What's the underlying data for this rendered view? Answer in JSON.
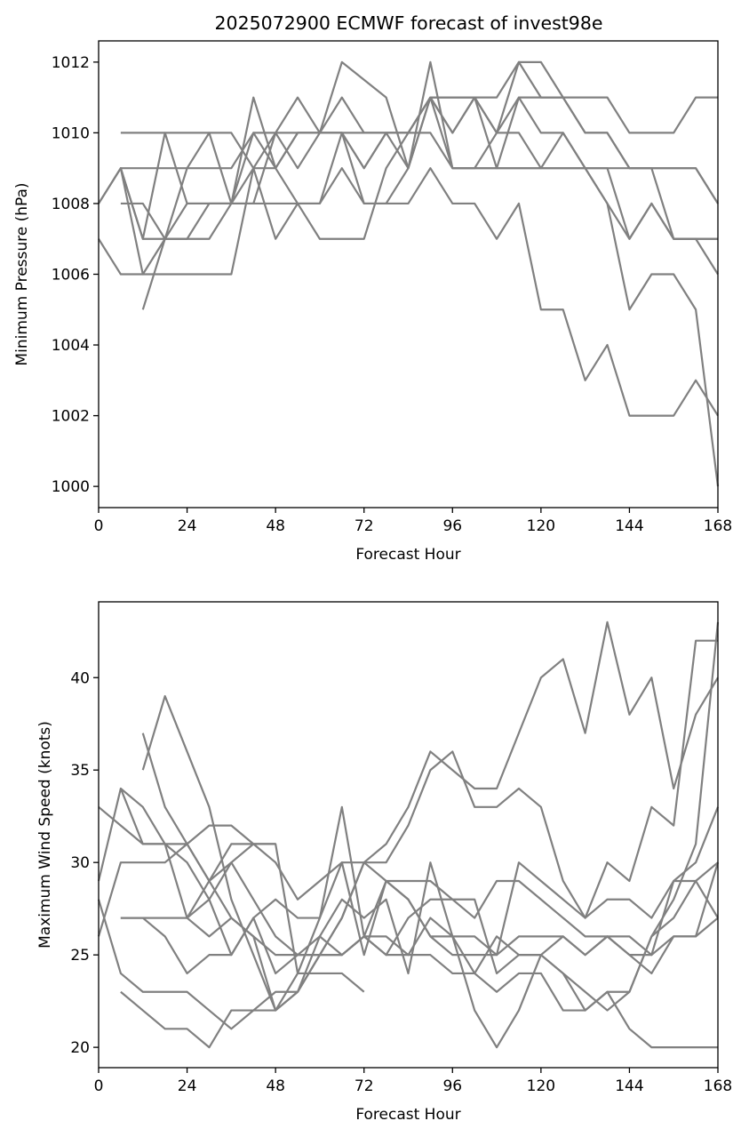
{
  "chart_data": [
    {
      "type": "line",
      "title": "2025072900 ECMWF forecast of invest98e",
      "xlabel": "Forecast Hour",
      "ylabel": "Minimum Pressure (hPa)",
      "xlim": [
        0,
        168
      ],
      "ylim": [
        999.4,
        1012.6
      ],
      "xticks": [
        0,
        24,
        48,
        72,
        96,
        120,
        144,
        168
      ],
      "yticks": [
        1000,
        1002,
        1004,
        1006,
        1008,
        1010,
        1012
      ],
      "grid": false,
      "line_color": "#808080",
      "series": [
        {
          "x": [
            6,
            12,
            18,
            24,
            30,
            36,
            42,
            48,
            54,
            60,
            66,
            72,
            78,
            84,
            90,
            96,
            102,
            108,
            114,
            120,
            126,
            132,
            138,
            144,
            150,
            156,
            162,
            168
          ],
          "values": [
            1010,
            1010,
            1010,
            1010,
            1010,
            1010,
            1009,
            1009,
            1010,
            1010,
            1010,
            1010,
            1010,
            1010,
            1010,
            1009,
            1009,
            1009,
            1009,
            1009,
            1009,
            1009,
            1009,
            1009,
            1009,
            1009,
            1009,
            1008
          ]
        },
        {
          "x": [
            0,
            6,
            12,
            18,
            24,
            30,
            36,
            42,
            48,
            54,
            60,
            66,
            72,
            78,
            84,
            90,
            96,
            102,
            108,
            114,
            120,
            126,
            132,
            138,
            144,
            150,
            156,
            162,
            168
          ],
          "values": [
            1007,
            1006,
            1006,
            1006,
            1006,
            1006,
            1006,
            1009,
            1010,
            1011,
            1010,
            1012,
            1011.5,
            1011,
            1009,
            1011,
            1011,
            1011,
            1011,
            1012,
            1012,
            1011,
            1010,
            1010,
            1009,
            1009,
            1009,
            1009,
            1008
          ]
        },
        {
          "x": [
            0,
            6,
            12,
            18,
            24,
            30,
            36,
            42,
            48,
            54,
            60,
            66,
            72,
            78,
            84,
            90,
            96,
            102,
            108,
            114,
            120,
            126,
            132,
            138,
            144,
            150,
            156,
            162,
            168
          ],
          "values": [
            1008,
            1009,
            1007,
            1007,
            1007,
            1008,
            1008,
            1008,
            1008,
            1008,
            1008,
            1009,
            1008,
            1008,
            1008,
            1009,
            1008,
            1008,
            1007,
            1008,
            1005,
            1005,
            1003,
            1004,
            1002,
            1002,
            1002,
            1003,
            1002
          ]
        },
        {
          "x": [
            6,
            12,
            18,
            24,
            30,
            36,
            42,
            48,
            54,
            60,
            66,
            72,
            78,
            84,
            90,
            96,
            102,
            108,
            114,
            120,
            126,
            132,
            138,
            144,
            150,
            156,
            162,
            168
          ],
          "values": [
            1009,
            1007,
            1010,
            1008,
            1008,
            1008,
            1011,
            1009,
            1008,
            1008,
            1010,
            1008,
            1008,
            1009,
            1011,
            1009,
            1009,
            1009,
            1009,
            1009,
            1009,
            1009,
            1008,
            1005,
            1006,
            1006,
            1005,
            1000
          ]
        },
        {
          "x": [
            6,
            12,
            18,
            24,
            30,
            36,
            42,
            48,
            54,
            60,
            66,
            72,
            78,
            84,
            90,
            96,
            102,
            108,
            114,
            120,
            126,
            132,
            138,
            144,
            150,
            156,
            162,
            168
          ],
          "values": [
            1008,
            1008,
            1007,
            1007,
            1007,
            1008,
            1009,
            1007,
            1008,
            1007,
            1007,
            1007,
            1009,
            1010,
            1011,
            1010,
            1011,
            1009,
            1011,
            1010,
            1010,
            1009,
            1009,
            1007,
            1008,
            1007,
            1007,
            1007
          ]
        },
        {
          "x": [
            12,
            18,
            24,
            30,
            36,
            42,
            48,
            54,
            60,
            66,
            72,
            78,
            84,
            90,
            96,
            102,
            108,
            114,
            120,
            126,
            132,
            138,
            144,
            150,
            156,
            162,
            168
          ],
          "values": [
            1005,
            1007,
            1008,
            1008,
            1008,
            1008,
            1010,
            1010,
            1010,
            1010,
            1009,
            1010,
            1009,
            1012,
            1009,
            1009,
            1010,
            1012,
            1011,
            1011,
            1010,
            1010,
            1009,
            1009,
            1007,
            1007,
            1007
          ]
        },
        {
          "x": [
            6,
            12,
            18,
            24,
            30,
            36,
            42,
            48,
            54,
            60,
            66,
            72,
            78,
            84,
            90,
            96,
            102,
            108,
            114,
            120,
            126,
            132,
            138,
            144,
            150,
            156,
            162,
            168
          ],
          "values": [
            1009,
            1009,
            1009,
            1009,
            1009,
            1009,
            1010,
            1010,
            1009,
            1010,
            1011,
            1010,
            1010,
            1010,
            1011,
            1011,
            1011,
            1010,
            1011,
            1011,
            1011,
            1011,
            1011,
            1010,
            1010,
            1010,
            1011,
            1011
          ]
        },
        {
          "x": [
            0,
            6,
            12,
            18,
            24,
            30,
            36,
            42,
            48,
            54,
            60,
            66,
            72,
            78,
            84,
            90,
            96,
            102,
            108,
            114,
            120,
            126,
            132,
            138,
            144,
            150,
            156,
            162,
            168
          ],
          "values": [
            1008,
            1009,
            1006,
            1007,
            1009,
            1010,
            1008,
            1010,
            1009,
            1010,
            1010,
            1010,
            1009,
            1010,
            1010,
            1011,
            1010,
            1011,
            1010,
            1010,
            1009,
            1010,
            1009,
            1008,
            1007,
            1008,
            1007,
            1007,
            1006
          ]
        }
      ]
    },
    {
      "type": "line",
      "title": "",
      "xlabel": "Forecast Hour",
      "ylabel": "Maximum Wind Speed (knots)",
      "xlim": [
        0,
        168
      ],
      "ylim": [
        18.9,
        44.1
      ],
      "xticks": [
        0,
        24,
        48,
        72,
        96,
        120,
        144,
        168
      ],
      "yticks": [
        20,
        25,
        30,
        35,
        40
      ],
      "grid": false,
      "line_color": "#808080",
      "series": [
        {
          "x": [
            12,
            18,
            24,
            30,
            36,
            42,
            48,
            54,
            60,
            66,
            72,
            78,
            84,
            90,
            96,
            102,
            108,
            114,
            120,
            126,
            132,
            138,
            144,
            150,
            156,
            162,
            168
          ],
          "values": [
            35,
            39,
            36,
            33,
            28,
            25,
            22,
            23,
            25,
            27,
            30,
            31,
            33,
            36,
            35,
            34,
            34,
            37,
            40,
            41,
            37,
            43,
            38,
            40,
            34,
            38,
            40
          ]
        },
        {
          "x": [
            0,
            6,
            12,
            18,
            24,
            30,
            36,
            42,
            48,
            54,
            60,
            66,
            72,
            78,
            84,
            90,
            96,
            102,
            108,
            114,
            120,
            126,
            132,
            138,
            144,
            150,
            156,
            162,
            168
          ],
          "values": [
            33,
            32,
            31,
            31,
            31,
            29,
            27,
            26,
            25,
            25,
            25,
            27,
            30,
            29,
            29,
            29,
            28,
            27,
            29,
            29,
            28,
            27,
            26,
            26,
            25,
            25,
            26,
            26,
            27
          ]
        },
        {
          "x": [
            0,
            6,
            12,
            18,
            24,
            30,
            36,
            42,
            48,
            54,
            60,
            66,
            72,
            78,
            84,
            90,
            96,
            102,
            108,
            114,
            120,
            126,
            132,
            138,
            144,
            150,
            156,
            162,
            168
          ],
          "values": [
            29,
            34,
            31,
            31,
            30,
            28,
            25,
            27,
            28,
            27,
            27,
            30,
            25,
            29,
            28,
            26,
            26,
            24,
            23,
            24,
            24,
            22,
            22,
            23,
            21,
            20,
            20,
            20,
            20
          ]
        },
        {
          "x": [
            6,
            12,
            18,
            24,
            30,
            36,
            42,
            48,
            54,
            60,
            66,
            72
          ],
          "values": [
            23,
            22,
            21,
            21,
            20,
            22,
            22,
            22,
            24,
            24,
            24,
            23
          ]
        },
        {
          "x": [
            6,
            12,
            18,
            24,
            30,
            36,
            42,
            48,
            54,
            60,
            66,
            72,
            78,
            84,
            90,
            96,
            102,
            108,
            114,
            120,
            126,
            132,
            138,
            144,
            150,
            156,
            162,
            168
          ],
          "values": [
            27,
            27,
            27,
            27,
            28,
            30,
            31,
            30,
            28,
            29,
            30,
            30,
            30,
            32,
            35,
            36,
            33,
            33,
            34,
            33,
            29,
            27,
            30,
            29,
            33,
            32,
            42,
            42
          ]
        },
        {
          "x": [
            6,
            12,
            18,
            24,
            30,
            36,
            42,
            48,
            54,
            60,
            66,
            72,
            78,
            84,
            90,
            96,
            102,
            108,
            114,
            120,
            126,
            132,
            138,
            144,
            150,
            156,
            162,
            168
          ],
          "values": [
            34,
            33,
            31,
            27,
            29,
            31,
            31,
            31,
            24,
            27,
            33,
            26,
            29,
            28,
            26,
            25,
            25,
            25,
            26,
            26,
            26,
            25,
            26,
            26,
            25,
            29,
            29,
            27
          ]
        },
        {
          "x": [
            0,
            6,
            12,
            18,
            24,
            30,
            36,
            42,
            48
          ],
          "values": [
            26,
            30,
            30,
            30,
            31,
            32,
            32,
            31,
            31
          ]
        },
        {
          "x": [
            0,
            6,
            12,
            18,
            24,
            30,
            36,
            42,
            48,
            54,
            60,
            66,
            72,
            78,
            84,
            90,
            96,
            102,
            108,
            114,
            120,
            126,
            132,
            138,
            144,
            150,
            156,
            162,
            168
          ],
          "values": [
            28,
            24,
            23,
            23,
            23,
            22,
            21,
            22,
            23,
            23,
            26,
            25,
            26,
            25,
            25,
            25,
            24,
            24,
            26,
            25,
            25,
            26,
            25,
            26,
            25,
            24,
            26,
            26,
            30
          ]
        },
        {
          "x": [
            12,
            18,
            24,
            30,
            36,
            42,
            48,
            54,
            60,
            66,
            72,
            78,
            84,
            90,
            96,
            102,
            108,
            114,
            120,
            126,
            132,
            138,
            144,
            150,
            156,
            162,
            168
          ],
          "values": [
            37,
            33,
            31,
            29,
            30,
            28,
            26,
            25,
            25,
            25,
            26,
            25,
            27,
            28,
            28,
            28,
            24,
            25,
            25,
            24,
            22,
            23,
            23,
            26,
            28,
            31,
            43
          ]
        },
        {
          "x": [
            6,
            12,
            18,
            24,
            30,
            36,
            42,
            48,
            54,
            60,
            66,
            72,
            78,
            84,
            90,
            96,
            102,
            108,
            114,
            120,
            126,
            132,
            138,
            144,
            150,
            156,
            162,
            168
          ],
          "values": [
            27,
            27,
            26,
            24,
            25,
            25,
            27,
            24,
            25,
            26,
            28,
            27,
            28,
            24,
            30,
            26,
            26,
            25,
            30,
            29,
            28,
            27,
            28,
            28,
            27,
            29,
            30,
            33
          ]
        },
        {
          "x": [
            6,
            12,
            18,
            24,
            30,
            36,
            42,
            48,
            54,
            60,
            66,
            72,
            78,
            84,
            90,
            96,
            102,
            108,
            114,
            120,
            126,
            132,
            138,
            144,
            150,
            156,
            162,
            168
          ],
          "values": [
            27,
            27,
            27,
            27,
            26,
            27,
            26,
            22,
            23,
            25,
            25,
            26,
            26,
            25,
            27,
            26,
            22,
            20,
            22,
            25,
            24,
            23,
            22,
            23,
            26,
            27,
            29,
            30
          ]
        }
      ]
    }
  ]
}
